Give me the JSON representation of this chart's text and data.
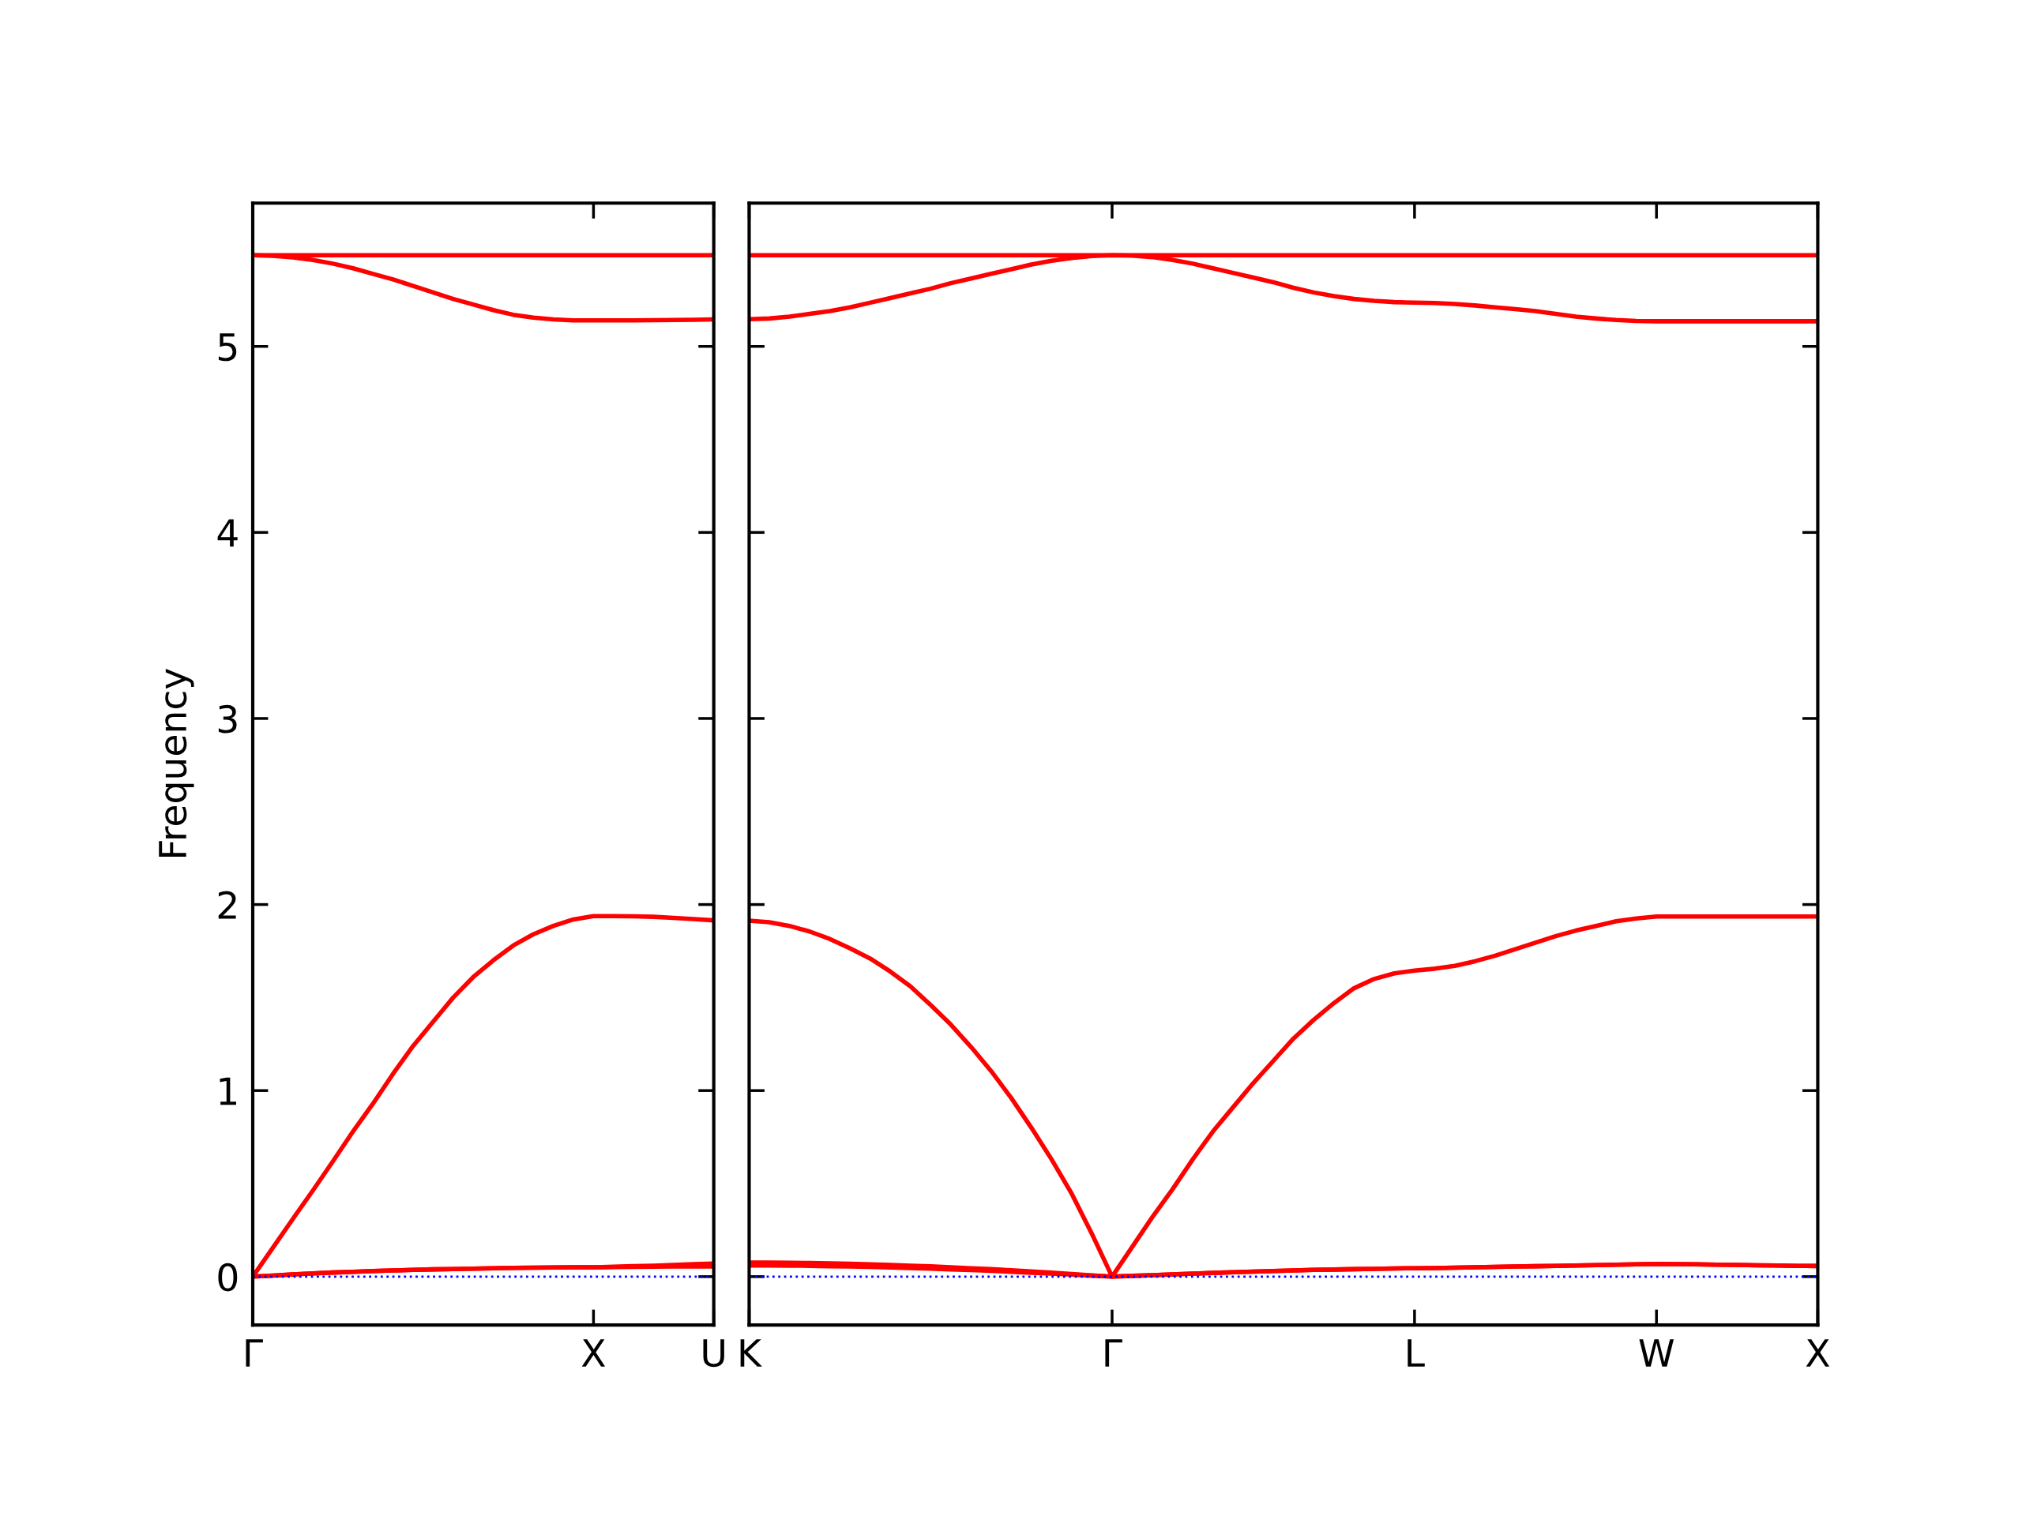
{
  "chart_data": [
    {
      "type": "line",
      "ylabel": "Frequency",
      "categories": [
        "Γ",
        null,
        null,
        null,
        null,
        null,
        null,
        null,
        null,
        null,
        null,
        null,
        null,
        null,
        null,
        null,
        null,
        "X",
        null,
        null,
        null,
        null,
        null,
        "U"
      ],
      "ylim": [
        -0.26,
        5.77
      ],
      "yticks": [
        0,
        1,
        2,
        3,
        4,
        5
      ],
      "marker": "none",
      "line_style": "solid",
      "ref_lines": [
        {
          "axis": "y",
          "value": 0,
          "color": "#0000ff",
          "line_style": "dotted"
        }
      ],
      "series": [
        {
          "color": "#ff0000",
          "values": [
            0,
            0.006,
            0.012,
            0.017,
            0.022,
            0.026,
            0.03,
            0.033,
            0.036,
            0.039,
            0.041,
            0.043,
            0.045,
            0.047,
            0.048,
            0.049,
            0.05,
            0.05,
            0.051,
            0.052,
            0.053,
            0.054,
            0.055,
            0.055
          ]
        },
        {
          "color": "#ff0000",
          "values": [
            0,
            0.006,
            0.012,
            0.017,
            0.022,
            0.026,
            0.03,
            0.033,
            0.036,
            0.039,
            0.041,
            0.043,
            0.045,
            0.047,
            0.048,
            0.049,
            0.05,
            0.05,
            0.053,
            0.056,
            0.059,
            0.063,
            0.067,
            0.07
          ]
        },
        {
          "color": "#ff0000",
          "values": [
            0,
            0.155,
            0.31,
            0.463,
            0.62,
            0.78,
            0.93,
            1.09,
            1.24,
            1.37,
            1.5,
            1.61,
            1.7,
            1.78,
            1.84,
            1.885,
            1.92,
            1.938,
            1.938,
            1.937,
            1.934,
            1.928,
            1.922,
            1.915
          ]
        },
        {
          "color": "#ff0000",
          "values": [
            5.49,
            5.487,
            5.478,
            5.465,
            5.445,
            5.42,
            5.39,
            5.36,
            5.325,
            5.29,
            5.255,
            5.225,
            5.195,
            5.17,
            5.155,
            5.145,
            5.14,
            5.14,
            5.14,
            5.14,
            5.141,
            5.142,
            5.143,
            5.145
          ]
        },
        {
          "color": "#ff0000",
          "values": [
            5.49,
            5.49,
            5.49,
            5.49,
            5.49,
            5.49,
            5.49,
            5.49,
            5.49,
            5.49,
            5.49,
            5.49,
            5.49,
            5.49,
            5.49,
            5.49,
            5.49,
            5.49,
            5.49,
            5.49,
            5.49,
            5.49,
            5.49,
            5.49
          ]
        }
      ]
    },
    {
      "type": "line",
      "categories": [
        "K",
        null,
        null,
        null,
        null,
        null,
        null,
        null,
        null,
        null,
        null,
        null,
        null,
        null,
        null,
        null,
        null,
        null,
        "Γ",
        null,
        null,
        null,
        null,
        null,
        null,
        null,
        null,
        null,
        null,
        null,
        null,
        null,
        null,
        "L",
        null,
        null,
        null,
        null,
        null,
        null,
        null,
        null,
        null,
        null,
        null,
        "W",
        null,
        null,
        null,
        null,
        null,
        null,
        null,
        "X"
      ],
      "ylim": [
        -0.26,
        5.77
      ],
      "yticks": [
        0,
        1,
        2,
        3,
        4,
        5
      ],
      "tick_labels": "x",
      "marker": "none",
      "line_style": "solid",
      "ref_lines": [
        {
          "axis": "y",
          "value": 0,
          "color": "#0000ff",
          "line_style": "dotted"
        }
      ],
      "series": [
        {
          "color": "#ff0000",
          "values": [
            0.06,
            0.06,
            0.059,
            0.058,
            0.056,
            0.054,
            0.052,
            0.049,
            0.046,
            0.043,
            0.039,
            0.035,
            0.031,
            0.026,
            0.021,
            0.016,
            0.011,
            0.005,
            0,
            0.004,
            0.008,
            0.012,
            0.016,
            0.02,
            0.024,
            0.027,
            0.03,
            0.033,
            0.036,
            0.038,
            0.04,
            0.042,
            0.044,
            0.045,
            0.046,
            0.048,
            0.05,
            0.052,
            0.054,
            0.056,
            0.058,
            0.06,
            0.062,
            0.064,
            0.066,
            0.068,
            0.067,
            0.066,
            0.064,
            0.063,
            0.061,
            0.06,
            0.058,
            0.057
          ]
        },
        {
          "color": "#ff0000",
          "values": [
            0.075,
            0.075,
            0.074,
            0.073,
            0.071,
            0.069,
            0.066,
            0.063,
            0.059,
            0.055,
            0.05,
            0.045,
            0.04,
            0.034,
            0.028,
            0.021,
            0.014,
            0.007,
            0,
            0.004,
            0.008,
            0.012,
            0.016,
            0.02,
            0.024,
            0.027,
            0.03,
            0.033,
            0.036,
            0.038,
            0.04,
            0.042,
            0.044,
            0.045,
            0.046,
            0.048,
            0.05,
            0.052,
            0.054,
            0.056,
            0.058,
            0.06,
            0.062,
            0.064,
            0.066,
            0.068,
            0.067,
            0.066,
            0.064,
            0.063,
            0.061,
            0.06,
            0.058,
            0.057
          ]
        },
        {
          "color": "#ff0000",
          "values": [
            1.913,
            1.905,
            1.885,
            1.855,
            1.815,
            1.765,
            1.71,
            1.64,
            1.56,
            1.46,
            1.355,
            1.235,
            1.105,
            0.96,
            0.8,
            0.63,
            0.445,
            0.23,
            0,
            0.16,
            0.32,
            0.47,
            0.63,
            0.78,
            0.91,
            1.04,
            1.16,
            1.28,
            1.38,
            1.47,
            1.55,
            1.6,
            1.63,
            1.645,
            1.655,
            1.67,
            1.695,
            1.725,
            1.76,
            1.795,
            1.83,
            1.86,
            1.885,
            1.91,
            1.925,
            1.936,
            1.936,
            1.936,
            1.936,
            1.936,
            1.936,
            1.936,
            1.936,
            1.936
          ]
        },
        {
          "color": "#ff0000",
          "values": [
            5.146,
            5.15,
            5.16,
            5.175,
            5.19,
            5.21,
            5.235,
            5.26,
            5.285,
            5.31,
            5.34,
            5.365,
            5.39,
            5.415,
            5.44,
            5.46,
            5.475,
            5.486,
            5.49,
            5.488,
            5.48,
            5.465,
            5.445,
            5.42,
            5.395,
            5.37,
            5.345,
            5.315,
            5.29,
            5.27,
            5.255,
            5.245,
            5.238,
            5.235,
            5.233,
            5.228,
            5.22,
            5.21,
            5.2,
            5.19,
            5.175,
            5.16,
            5.15,
            5.142,
            5.137,
            5.135,
            5.135,
            5.135,
            5.135,
            5.135,
            5.135,
            5.135,
            5.135,
            5.135
          ]
        },
        {
          "color": "#ff0000",
          "values": [
            5.49,
            5.49,
            5.49,
            5.49,
            5.49,
            5.49,
            5.49,
            5.49,
            5.49,
            5.49,
            5.49,
            5.49,
            5.49,
            5.49,
            5.49,
            5.49,
            5.49,
            5.49,
            5.49,
            5.49,
            5.49,
            5.49,
            5.49,
            5.49,
            5.49,
            5.49,
            5.49,
            5.49,
            5.49,
            5.49,
            5.49,
            5.49,
            5.49,
            5.49,
            5.49,
            5.49,
            5.49,
            5.49,
            5.49,
            5.49,
            5.49,
            5.49,
            5.49,
            5.49,
            5.49,
            5.49,
            5.49,
            5.49,
            5.49,
            5.49,
            5.49,
            5.49,
            5.49,
            5.49
          ]
        }
      ]
    }
  ]
}
